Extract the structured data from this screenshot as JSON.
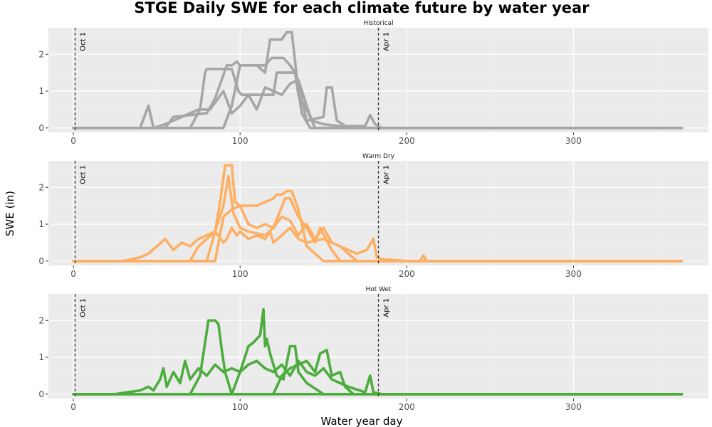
{
  "chart_data": {
    "type": "line",
    "title": "STGE Daily SWE for each climate future by water year",
    "xlabel": "Water year day",
    "ylabel": "SWE (in)",
    "xlim": [
      -15,
      381
    ],
    "ylim": [
      -0.12,
      2.72
    ],
    "x_ticks": [
      0,
      100,
      200,
      300
    ],
    "y_ticks": [
      0,
      1,
      2
    ],
    "grid": true,
    "vlines": [
      {
        "x": 1,
        "label": "Oct 1"
      },
      {
        "x": 183,
        "label": "Apr 1"
      }
    ],
    "panels": [
      {
        "name": "Historical",
        "color": "#A6A6A6",
        "series": [
          {
            "x": [
              0,
              40,
              45,
              48,
              55,
              65,
              75,
              82,
              90,
              95,
              100,
              105,
              110,
              115,
              120,
              125,
              130,
              135,
              140,
              143,
              150,
              160,
              175,
              178,
              181,
              185,
              200,
              365
            ],
            "values": [
              0,
              0,
              0.6,
              0,
              0.1,
              0.3,
              0.5,
              0.5,
              1.0,
              0.4,
              0.6,
              0.9,
              0.5,
              1.1,
              1.0,
              0.9,
              1.2,
              1.3,
              0.6,
              0.2,
              0.1,
              0.05,
              0.05,
              0.35,
              0.1,
              0,
              0,
              0
            ]
          },
          {
            "x": [
              0,
              70,
              76,
              79,
              80,
              95,
              99,
              101,
              120,
              122,
              133,
              135,
              140,
              145,
              365
            ],
            "values": [
              0,
              0,
              0.5,
              1.5,
              1.6,
              1.6,
              1.0,
              0.9,
              0.9,
              1.5,
              1.5,
              0.9,
              0.5,
              0,
              0
            ]
          },
          {
            "x": [
              0,
              90,
              95,
              100,
              110,
              115,
              118,
              125,
              128,
              131,
              135,
              137,
              142,
              365
            ],
            "values": [
              0,
              0,
              0.6,
              1.7,
              1.7,
              1.5,
              2.4,
              2.4,
              2.6,
              2.6,
              1.0,
              0.4,
              0,
              0
            ]
          },
          {
            "x": [
              0,
              55,
              60,
              80,
              85,
              92,
              95,
              98,
              100,
              105,
              115,
              119,
              126,
              130,
              133,
              140,
              150,
              152,
              155,
              158,
              165,
              365
            ],
            "values": [
              0,
              0,
              0.3,
              0.4,
              0.8,
              1.7,
              1.7,
              1.8,
              1.7,
              1.7,
              1.7,
              1.9,
              1.9,
              1.7,
              1.5,
              0.2,
              0.3,
              1.1,
              1.1,
              0.2,
              0,
              0
            ]
          }
        ]
      },
      {
        "name": "Warm Dry",
        "color": "#FDB064",
        "series": [
          {
            "x": [
              0,
              30,
              40,
              45,
              50,
              55,
              60,
              65,
              70,
              75,
              80,
              85,
              90,
              92,
              95,
              98,
              100,
              105,
              110,
              115,
              118,
              120,
              125,
              130,
              135,
              140,
              150,
              160,
              170,
              176,
              180,
              182,
              185,
              200,
              208,
              210,
              212,
              365
            ],
            "values": [
              0,
              0,
              0.1,
              0.2,
              0.4,
              0.6,
              0.3,
              0.5,
              0.4,
              0.6,
              0.7,
              0.8,
              0.5,
              0.6,
              0.9,
              0.7,
              0.8,
              0.6,
              0.7,
              0.6,
              0.8,
              0.5,
              0.7,
              0.9,
              0.6,
              0.5,
              0.6,
              0.4,
              0.2,
              0.3,
              0.6,
              0.1,
              0.05,
              0,
              0,
              0.15,
              0,
              0
            ]
          },
          {
            "x": [
              0,
              80,
              85,
              88,
              91,
              95,
              97,
              100,
              110,
              120,
              122,
              125,
              128,
              131,
              135,
              140,
              150,
              365
            ],
            "values": [
              0,
              0,
              0.8,
              1.6,
              2.6,
              2.6,
              1.6,
              1.5,
              1.5,
              1.7,
              1.8,
              1.8,
              1.9,
              1.9,
              1.4,
              0.4,
              0,
              0
            ]
          },
          {
            "x": [
              0,
              85,
              90,
              95,
              100,
              105,
              110,
              115,
              120,
              125,
              130,
              135,
              140,
              145,
              150,
              155,
              160,
              165,
              170,
              365
            ],
            "values": [
              0,
              0,
              1.2,
              1.4,
              1.5,
              1.0,
              0.9,
              1.0,
              0.9,
              1.2,
              1.1,
              0.7,
              1.0,
              0.6,
              0.9,
              0.5,
              0.4,
              0.2,
              0,
              0
            ]
          },
          {
            "x": [
              0,
              70,
              75,
              80,
              85,
              90,
              93,
              96,
              100,
              105,
              115,
              120,
              127,
              130,
              135,
              140,
              145,
              148,
              155,
              160,
              365
            ],
            "values": [
              0,
              0,
              0.4,
              0.6,
              0.8,
              1.5,
              2.3,
              1.3,
              0.9,
              0.8,
              0.7,
              0.9,
              1.7,
              1.7,
              1.2,
              0.9,
              0.5,
              0.9,
              0.3,
              0,
              0
            ]
          }
        ]
      },
      {
        "name": "Hot Wet",
        "color": "#4DAC3E",
        "series": [
          {
            "x": [
              0,
              25,
              40,
              45,
              48,
              52,
              54,
              56,
              60,
              64,
              67,
              70,
              75,
              80,
              85,
              90,
              95,
              100,
              105,
              110,
              115,
              120,
              125,
              130,
              135,
              140,
              145,
              150,
              155,
              160,
              165,
              175,
              178,
              180,
              185,
              365
            ],
            "values": [
              0,
              0,
              0.1,
              0.2,
              0.1,
              0.4,
              0.7,
              0.2,
              0.6,
              0.3,
              0.9,
              0.4,
              0.7,
              0.5,
              0.8,
              0.6,
              0.7,
              0.6,
              0.8,
              0.9,
              0.7,
              0.6,
              0.8,
              0.5,
              0.9,
              0.6,
              0.5,
              0.7,
              0.4,
              0.3,
              0.2,
              0.05,
              0.5,
              0.05,
              0,
              0
            ]
          },
          {
            "x": [
              0,
              70,
              76,
              80,
              81,
              85,
              87,
              89,
              91,
              95,
              365
            ],
            "values": [
              0,
              0,
              0.5,
              1.7,
              2.0,
              2.0,
              1.9,
              1.2,
              0.6,
              0,
              0
            ]
          },
          {
            "x": [
              0,
              95,
              100,
              105,
              108,
              112,
              114,
              115,
              116,
              118,
              122,
              126,
              130,
              133,
              135,
              140,
              150,
              365
            ],
            "values": [
              0,
              0,
              0.6,
              1.3,
              1.4,
              1.6,
              2.3,
              1.3,
              1.5,
              1.1,
              0.5,
              0.4,
              1.3,
              1.3,
              0.6,
              0.3,
              0,
              0
            ]
          },
          {
            "x": [
              0,
              120,
              125,
              130,
              135,
              140,
              145,
              148,
              152,
              155,
              160,
              163,
              168,
              365
            ],
            "values": [
              0,
              0,
              0.5,
              0.7,
              0.8,
              0.9,
              0.6,
              1.1,
              1.2,
              0.5,
              0.6,
              0.2,
              0,
              0
            ]
          }
        ]
      }
    ]
  }
}
